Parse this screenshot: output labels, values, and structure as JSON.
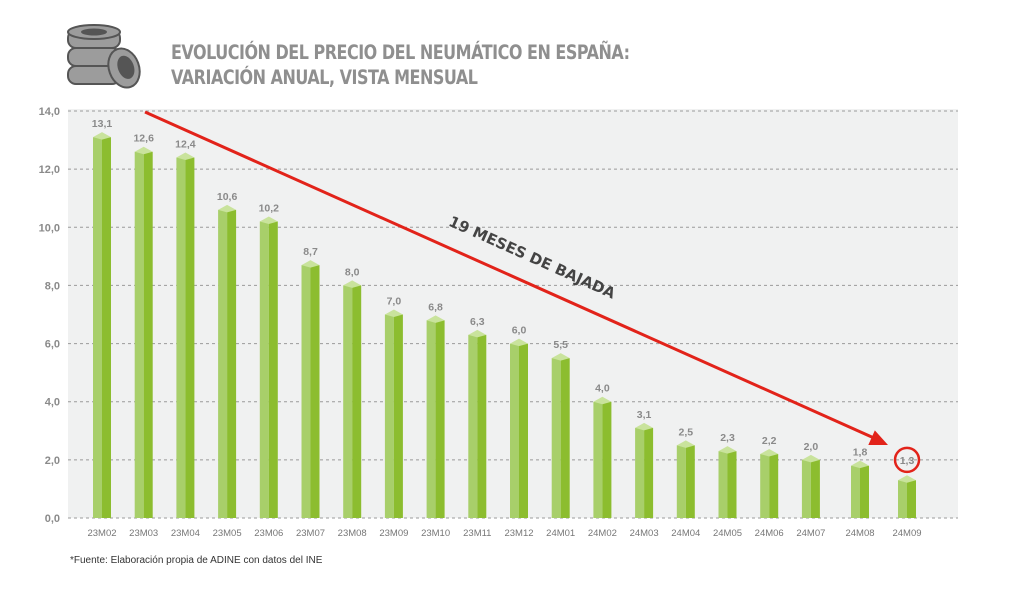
{
  "header": {
    "title_line1": "EVOLUCIÓN DEL PRECIO DEL NEUMÁTICO EN ESPAÑA:",
    "title_line2": "VARIACIÓN ANUAL, VISTA MENSUAL",
    "icon": "tires-stack-icon"
  },
  "footer": {
    "source": "*Fuente: Elaboración propia de ADINE con datos del INE"
  },
  "colors": {
    "bar_light": "#a8cf6a",
    "bar_dark": "#8cbd2f",
    "bar_top": "#c9e39c",
    "arrow": "#e2231a",
    "panel": "#f0f1f1",
    "text": "#8a8a8a"
  },
  "chart_data": {
    "type": "bar",
    "title": "EVOLUCIÓN DEL PRECIO DEL NEUMÁTICO EN ESPAÑA: VARIACIÓN ANUAL, VISTA MENSUAL",
    "xlabel": "",
    "ylabel": "",
    "ylim": [
      0,
      14
    ],
    "yticks": [
      "0,0",
      "2,0",
      "4,0",
      "6,0",
      "8,0",
      "10,0",
      "12,0",
      "14,0"
    ],
    "ytick_values": [
      0,
      2,
      4,
      6,
      8,
      10,
      12,
      14
    ],
    "grid": true,
    "categories": [
      "23M02",
      "23M03",
      "23M04",
      "23M05",
      "23M06",
      "23M07",
      "23M08",
      "23M09",
      "23M10",
      "23M11",
      "23M12",
      "24M01",
      "24M02",
      "24M03",
      "24M04",
      "24M05",
      "24M06",
      "24M07",
      "24M08",
      "24M09"
    ],
    "values": [
      13.1,
      12.6,
      12.4,
      10.6,
      10.2,
      8.7,
      8.0,
      7.0,
      6.8,
      6.3,
      6.0,
      5.5,
      4.0,
      3.1,
      2.5,
      2.3,
      2.2,
      2.0,
      1.8,
      1.3
    ],
    "value_labels": [
      "13,1",
      "12,6",
      "12,4",
      "10,6",
      "10,2",
      "8,7",
      "8,0",
      "7,0",
      "6,8",
      "6,3",
      "6,0",
      "5,5",
      "4,0",
      "3,1",
      "2,5",
      "2,3",
      "2,2",
      "2,0",
      "1,8",
      "1,3"
    ],
    "annotations": [
      {
        "type": "arrow",
        "text": "19 MESES DE BAJADA",
        "from_category": "23M03",
        "from_value": 14.0,
        "to_category": "24M08",
        "to_value": 2.6
      },
      {
        "type": "circle",
        "category": "24M09",
        "highlight_label": "1,3"
      }
    ]
  }
}
